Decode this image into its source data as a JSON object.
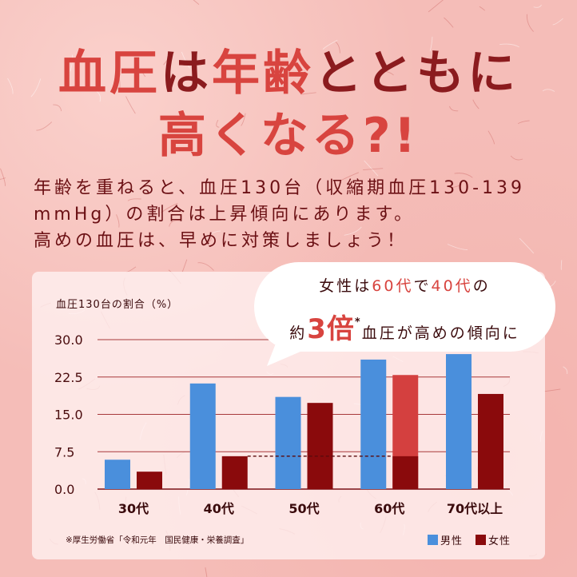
{
  "colors": {
    "background": "#f5bdb8",
    "accent": "#d8443f",
    "dark": "#8b1b1e",
    "text": "#6b1014"
  },
  "title": {
    "line1": [
      {
        "text": "血圧",
        "color": "#d8443f"
      },
      {
        "text": "は",
        "color": "#8b1b1e"
      },
      {
        "text": "年齢",
        "color": "#d8443f"
      },
      {
        "text": "とともに",
        "color": "#8b1b1e"
      }
    ],
    "line2": "高くなる?!"
  },
  "intro": [
    "年齢を重ねると、血圧130台（収縮期血圧130-139",
    "mmHg）の割合は上昇傾向にあります。",
    "高めの血圧は、早めに対策しましょう！"
  ],
  "callout": {
    "line1": [
      {
        "text": "女性は",
        "color": "#3a0a0c"
      },
      {
        "text": "60代",
        "color": "#d8443f"
      },
      {
        "text": "で",
        "color": "#3a0a0c"
      },
      {
        "text": "40代",
        "color": "#d8443f"
      },
      {
        "text": "の",
        "color": "#3a0a0c"
      }
    ],
    "line2": {
      "prefix": "約",
      "emphasis": "3倍",
      "emphasis_color": "#d8443f",
      "mark": "*",
      "suffix": "血圧が高めの傾向に"
    }
  },
  "chart_data": {
    "type": "bar",
    "ylabel": "血圧130台の割合（%）",
    "categories": [
      "30代",
      "40代",
      "50代",
      "60代",
      "70代以上"
    ],
    "series": [
      {
        "name": "男性",
        "color": "#4a8fdc",
        "values": [
          5.9,
          21.2,
          18.5,
          26.0,
          27.1
        ]
      },
      {
        "name": "女性",
        "color": "#8a0a0c",
        "values": [
          3.5,
          6.6,
          17.3,
          22.9,
          19.1
        ]
      }
    ],
    "ylim": [
      0,
      30
    ],
    "yticks": [
      "30.0",
      "22.5",
      "15.0",
      "7.5",
      "0.0"
    ],
    "grid": true,
    "highlight": {
      "series": "女性",
      "category": "60代",
      "color": "#d4403f"
    },
    "reference_line": {
      "series": "女性",
      "from": "40代",
      "to": "60代"
    },
    "legend": "bottom-right",
    "source": "※厚生労働省「令和元年　国民健康・栄養調査」"
  }
}
